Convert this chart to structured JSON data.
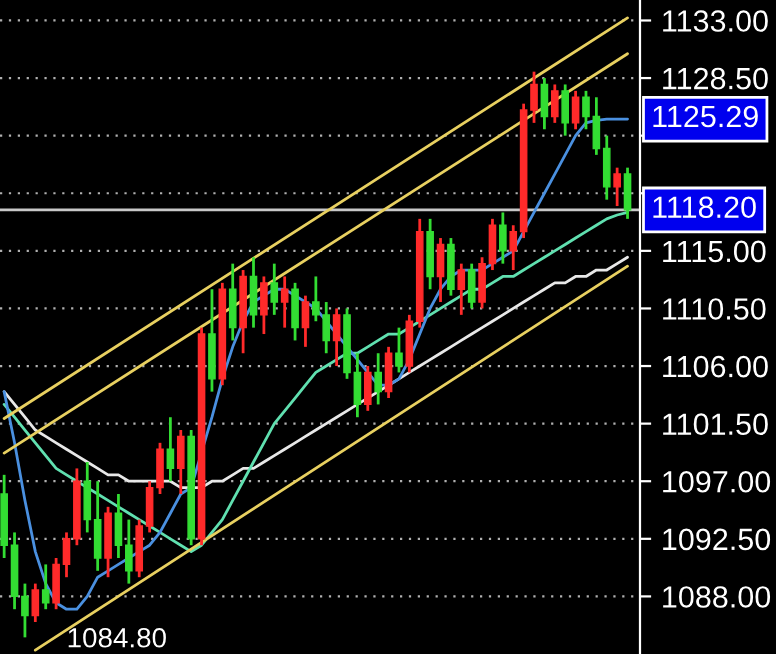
{
  "chart_data": {
    "type": "candlestick",
    "categories": [
      null,
      null,
      null,
      null,
      null,
      null,
      null,
      null,
      null,
      null,
      null,
      null,
      null,
      null,
      null,
      null,
      null,
      null,
      null,
      null,
      null,
      null,
      null,
      null,
      null,
      null,
      null,
      null,
      null,
      null,
      null,
      null,
      null,
      null,
      null,
      null,
      null,
      null,
      null,
      null,
      null,
      null,
      null,
      null,
      null,
      null,
      null,
      null,
      null,
      null,
      null,
      null,
      null,
      null,
      null,
      null,
      null,
      null,
      null,
      null,
      null
    ],
    "ohlc": [
      [
        1096,
        1097.5,
        1091,
        1092
      ],
      [
        1092,
        1093,
        1087,
        1088
      ],
      [
        1088,
        1089,
        1084.8,
        1086.5
      ],
      [
        1086.5,
        1089,
        1086,
        1088.5
      ],
      [
        1088.5,
        1090.5,
        1087,
        1087.5
      ],
      [
        1087.5,
        1091,
        1087,
        1090.5
      ],
      [
        1090.5,
        1093,
        1089.5,
        1092.5
      ],
      [
        1092.5,
        1098,
        1092,
        1097
      ],
      [
        1097,
        1098.5,
        1093,
        1094
      ],
      [
        1094,
        1097,
        1090,
        1091
      ],
      [
        1091,
        1095,
        1089.5,
        1094.5
      ],
      [
        1094.5,
        1096,
        1091,
        1092
      ],
      [
        1092,
        1094,
        1089,
        1090
      ],
      [
        1090,
        1094,
        1089.5,
        1093.5
      ],
      [
        1093.5,
        1097,
        1093,
        1096.5
      ],
      [
        1096.5,
        1100,
        1096,
        1099.5
      ],
      [
        1099.5,
        1102,
        1097,
        1098
      ],
      [
        1098,
        1101,
        1096,
        1100.5
      ],
      [
        1100.5,
        1101,
        1092,
        1092.5
      ],
      [
        1092.5,
        1109,
        1092,
        1108.5
      ],
      [
        1108.5,
        1112,
        1104,
        1105
      ],
      [
        1105,
        1112.5,
        1104.5,
        1112
      ],
      [
        1112,
        1114,
        1108,
        1109
      ],
      [
        1109,
        1113.5,
        1107,
        1113
      ],
      [
        1113,
        1114.5,
        1109,
        1110
      ],
      [
        1110,
        1113,
        1108.5,
        1112.5
      ],
      [
        1112.5,
        1114,
        1110,
        1111
      ],
      [
        1111,
        1113,
        1109,
        1112
      ],
      [
        1112,
        1112.5,
        1108,
        1109
      ],
      [
        1109,
        1111.5,
        1107.5,
        1111
      ],
      [
        1111,
        1113,
        1109.5,
        1110
      ],
      [
        1110,
        1111,
        1107,
        1108
      ],
      [
        1108,
        1110.5,
        1106,
        1110
      ],
      [
        1110,
        1110.5,
        1105,
        1105.5
      ],
      [
        1105.5,
        1107,
        1102,
        1103
      ],
      [
        1103,
        1106,
        1102.5,
        1105.5
      ],
      [
        1105.5,
        1107,
        1103,
        1104
      ],
      [
        1104,
        1107.5,
        1103.5,
        1107
      ],
      [
        1107,
        1109,
        1105.5,
        1106
      ],
      [
        1106,
        1110,
        1105.5,
        1109.5
      ],
      [
        1109.5,
        1117.5,
        1109,
        1116.5
      ],
      [
        1116.5,
        1117.5,
        1112,
        1113
      ],
      [
        1113,
        1116,
        1111,
        1115.5
      ],
      [
        1115.5,
        1116,
        1111.5,
        1112
      ],
      [
        1112,
        1114,
        1110,
        1113.5
      ],
      [
        1113.5,
        1114,
        1110.5,
        1111
      ],
      [
        1111,
        1114.5,
        1110.5,
        1114
      ],
      [
        1114,
        1117.5,
        1113.5,
        1117
      ],
      [
        1117,
        1118,
        1114,
        1115
      ],
      [
        1115,
        1117,
        1113.5,
        1116.5
      ],
      [
        1116.5,
        1126.5,
        1116,
        1126
      ],
      [
        1126,
        1129,
        1125,
        1128
      ],
      [
        1128,
        1128.5,
        1124.5,
        1125.5
      ],
      [
        1125.5,
        1128,
        1125,
        1127.5
      ],
      [
        1127.5,
        1128,
        1124,
        1125
      ],
      [
        1125,
        1127.5,
        1124.5,
        1127
      ],
      [
        1127,
        1127.5,
        1124.5,
        1125.5
      ],
      [
        1125.5,
        1127,
        1122.5,
        1123
      ],
      [
        1123,
        1124,
        1119,
        1120
      ],
      [
        1120,
        1121.5,
        1118.5,
        1121
      ],
      [
        1121,
        1121.5,
        1117.5,
        1118.2
      ]
    ],
    "colors": [
      "#33dd33",
      "#33dd33",
      "#33dd33",
      "#ff2a2a",
      "#33dd33",
      "#ff2a2a",
      "#ff2a2a",
      "#ff2a2a",
      "#33dd33",
      "#33dd33",
      "#ff2a2a",
      "#33dd33",
      "#33dd33",
      "#ff2a2a",
      "#ff2a2a",
      "#ff2a2a",
      "#33dd33",
      "#ff2a2a",
      "#33dd33",
      "#ff2a2a",
      "#33dd33",
      "#ff2a2a",
      "#33dd33",
      "#ff2a2a",
      "#33dd33",
      "#ff2a2a",
      "#33dd33",
      "#ff2a2a",
      "#33dd33",
      "#ff2a2a",
      "#33dd33",
      "#33dd33",
      "#ff2a2a",
      "#33dd33",
      "#33dd33",
      "#ff2a2a",
      "#33dd33",
      "#ff2a2a",
      "#33dd33",
      "#ff2a2a",
      "#ff2a2a",
      "#33dd33",
      "#ff2a2a",
      "#33dd33",
      "#ff2a2a",
      "#33dd33",
      "#ff2a2a",
      "#ff2a2a",
      "#33dd33",
      "#ff2a2a",
      "#ff2a2a",
      "#ff2a2a",
      "#33dd33",
      "#ff2a2a",
      "#33dd33",
      "#ff2a2a",
      "#33dd33",
      "#33dd33",
      "#33dd33",
      "#ff2a2a",
      "#33dd33"
    ],
    "series": [
      {
        "type": "line",
        "color": "#e8e8e8",
        "values": [
          1104,
          1103,
          1102,
          1101,
          1100.5,
          1100,
          1099.5,
          1099,
          1098.5,
          1098,
          1097.5,
          1097.5,
          1097,
          1097,
          1097,
          1097,
          1097,
          1096.5,
          1096.5,
          1096.5,
          1097,
          1097,
          1097.5,
          1098,
          1098,
          1098.5,
          1099,
          1099.5,
          1100,
          1100.5,
          1101,
          1101.5,
          1102,
          1102.5,
          1103,
          1103.5,
          1104,
          1104.5,
          1105,
          1105.5,
          1106,
          1106.5,
          1107,
          1107.5,
          1108,
          1108.5,
          1109,
          1109.5,
          1110,
          1110.5,
          1111,
          1111.5,
          1112,
          1112.5,
          1112.5,
          1113,
          1113,
          1113.5,
          1113.5,
          1114,
          1114.5
        ]
      },
      {
        "type": "line",
        "color": "#60e0b0",
        "values": [
          1103,
          1102,
          1101,
          1100,
          1099,
          1098,
          1097.5,
          1097,
          1096.5,
          1096,
          1095.5,
          1095,
          1094.5,
          1094,
          1093.5,
          1093,
          1092.5,
          1092,
          1091.5,
          1092,
          1093,
          1094,
          1095.5,
          1097,
          1098.5,
          1100,
          1101.5,
          1102.5,
          1103.5,
          1104.5,
          1105.5,
          1106,
          1106.5,
          1107,
          1107,
          1107.5,
          1108,
          1108.5,
          1108.5,
          1109,
          1109.5,
          1110,
          1110.5,
          1111,
          1111.5,
          1112,
          1112,
          1112.5,
          1113,
          1113,
          1113.5,
          1114,
          1114.5,
          1115,
          1115.5,
          1116,
          1116.5,
          1117,
          1117.5,
          1117.8,
          1118
        ]
      },
      {
        "type": "line",
        "color": "#4a90e0",
        "values": [
          1104,
          1100,
          1095.5,
          1091.5,
          1089,
          1087.5,
          1087,
          1087,
          1088,
          1089.5,
          1090,
          1090.5,
          1091,
          1091.5,
          1092,
          1093,
          1094.5,
          1096,
          1096.5,
          null,
          1102,
          1105,
          1107.5,
          1109.5,
          1111,
          1111.5,
          1112,
          1112,
          1111.5,
          1111,
          1110.5,
          1109.5,
          1108.5,
          1107.5,
          1106.5,
          1105.5,
          1104.5,
          1104.5,
          1105,
          1106.5,
          1108.5,
          1110.5,
          1112,
          1113,
          1113.5,
          1113.5,
          1113.5,
          1114,
          1114.5,
          1115,
          1116.5,
          1118,
          1119.5,
          1121,
          1122.5,
          1124,
          1125,
          1125.2,
          1125.3,
          1125.3,
          1125.3
        ]
      },
      {
        "type": "line",
        "color": "#e8d060",
        "values": [
          1101.9,
          null,
          null,
          null,
          null,
          null,
          null,
          null,
          null,
          null,
          null,
          null,
          null,
          null,
          null,
          null,
          null,
          null,
          null,
          null,
          null,
          null,
          null,
          null,
          null,
          null,
          null,
          null,
          null,
          null,
          null,
          null,
          null,
          null,
          null,
          null,
          null,
          null,
          null,
          null,
          null,
          null,
          null,
          null,
          null,
          null,
          null,
          null,
          null,
          null,
          null,
          null,
          null,
          null,
          null,
          null,
          null,
          null,
          null,
          null,
          1133.2
        ]
      },
      {
        "type": "line",
        "color": "#e8d060",
        "values": [
          1099.2,
          null,
          null,
          null,
          null,
          null,
          null,
          null,
          null,
          null,
          null,
          null,
          null,
          null,
          null,
          null,
          null,
          null,
          null,
          null,
          null,
          null,
          null,
          null,
          null,
          null,
          null,
          null,
          null,
          null,
          null,
          null,
          null,
          null,
          null,
          null,
          null,
          null,
          null,
          null,
          null,
          null,
          null,
          null,
          null,
          null,
          null,
          null,
          null,
          null,
          null,
          null,
          null,
          null,
          null,
          null,
          null,
          null,
          null,
          null,
          1130.4
        ]
      },
      {
        "type": "line",
        "color": "#e8d060",
        "values": [
          null,
          null,
          null,
          1083.8,
          null,
          null,
          null,
          null,
          null,
          null,
          null,
          null,
          null,
          null,
          null,
          null,
          null,
          null,
          null,
          null,
          null,
          null,
          null,
          null,
          null,
          null,
          null,
          null,
          null,
          null,
          null,
          null,
          null,
          null,
          null,
          null,
          null,
          null,
          null,
          null,
          null,
          null,
          null,
          null,
          null,
          null,
          null,
          null,
          null,
          null,
          null,
          null,
          null,
          null,
          null,
          null,
          null,
          null,
          null,
          null,
          1113.8
        ]
      }
    ],
    "ref_lines": [
      {
        "axis": "y",
        "value": 1118.2,
        "label": "1118.20",
        "color": "#c8c8c8"
      }
    ],
    "annotations": [
      "1125.29",
      "1084.80"
    ],
    "ylim": [
      1083.5,
      1134.6
    ],
    "yticks": [
      {
        "value": 1088,
        "label": "1088.00"
      },
      {
        "value": 1092.5,
        "label": "1092.50"
      },
      {
        "value": 1097,
        "label": "1097.00"
      },
      {
        "value": 1101.5,
        "label": "1101.50"
      },
      {
        "value": 1106,
        "label": "1106.00"
      },
      {
        "value": 1110.5,
        "label": "1110.50"
      },
      {
        "value": 1115,
        "label": "1115.00"
      },
      {
        "value": 1119.5,
        "label": null
      },
      {
        "value": 1124,
        "label": null
      },
      {
        "value": 1128.5,
        "label": "1128.50"
      },
      {
        "value": 1133,
        "label": "1133.00"
      }
    ],
    "tick_labels": "y",
    "grid": "y"
  }
}
